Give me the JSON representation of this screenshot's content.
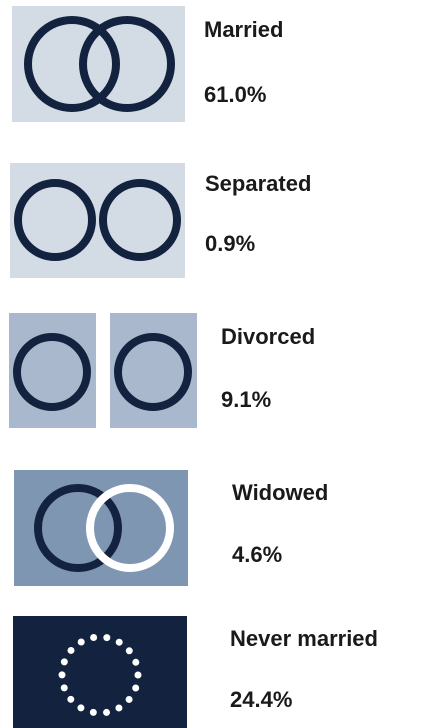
{
  "items": [
    {
      "label": "Married",
      "value": "61.0%"
    },
    {
      "label": "Separated",
      "value": "0.9%"
    },
    {
      "label": "Divorced",
      "value": "9.1%"
    },
    {
      "label": "Widowed",
      "value": "4.6%"
    },
    {
      "label": "Never married",
      "value": "24.4%"
    }
  ]
}
